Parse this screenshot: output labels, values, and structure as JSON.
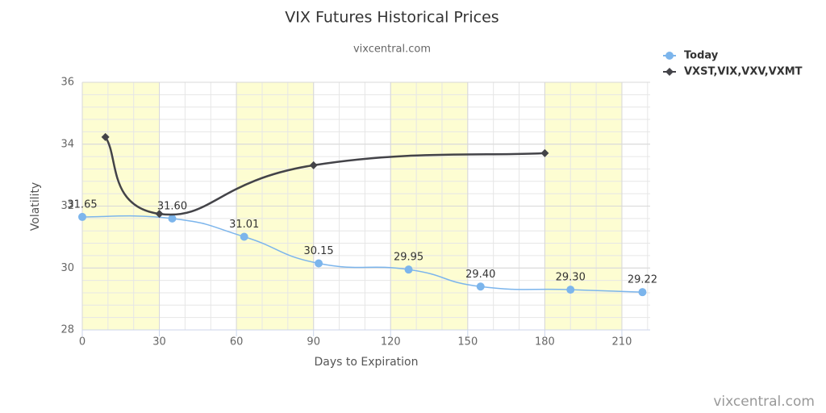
{
  "chart_data": {
    "type": "line",
    "title": "VIX Futures Historical Prices",
    "subtitle": "vixcentral.com",
    "x_label": "Days to Expiration",
    "y_label": "Volatility",
    "watermark": "vixcentral.com",
    "xlim": [
      0,
      221
    ],
    "xticks": [
      0,
      30,
      60,
      90,
      120,
      150,
      180,
      210
    ],
    "ylim": [
      28,
      36
    ],
    "yticks": [
      28,
      30,
      32,
      34,
      36
    ],
    "x_minor_interval": 10,
    "y_minor_interval": 0.4,
    "plot_bands": [
      [
        0,
        30
      ],
      [
        60,
        90
      ],
      [
        120,
        150
      ],
      [
        180,
        210
      ]
    ],
    "band_color": "#fdfdd2",
    "grid": true,
    "legend": "top-right",
    "series": [
      {
        "name": "Today",
        "color": "#7cb5ec",
        "marker": "circle",
        "x": [
          0,
          35,
          63,
          92,
          127,
          155,
          190,
          218
        ],
        "values": [
          31.65,
          31.6,
          31.01,
          30.15,
          29.95,
          29.4,
          29.3,
          29.22
        ],
        "value_labels": [
          "31.65",
          "31.60",
          "31.01",
          "30.15",
          "29.95",
          "29.40",
          "29.30",
          "29.22"
        ]
      },
      {
        "name": "VXST,VIX,VXV,VXMT",
        "color": "#434348",
        "marker": "diamond",
        "x": [
          9,
          30,
          90,
          180
        ],
        "values": [
          34.23,
          31.75,
          33.32,
          33.71
        ]
      }
    ]
  }
}
